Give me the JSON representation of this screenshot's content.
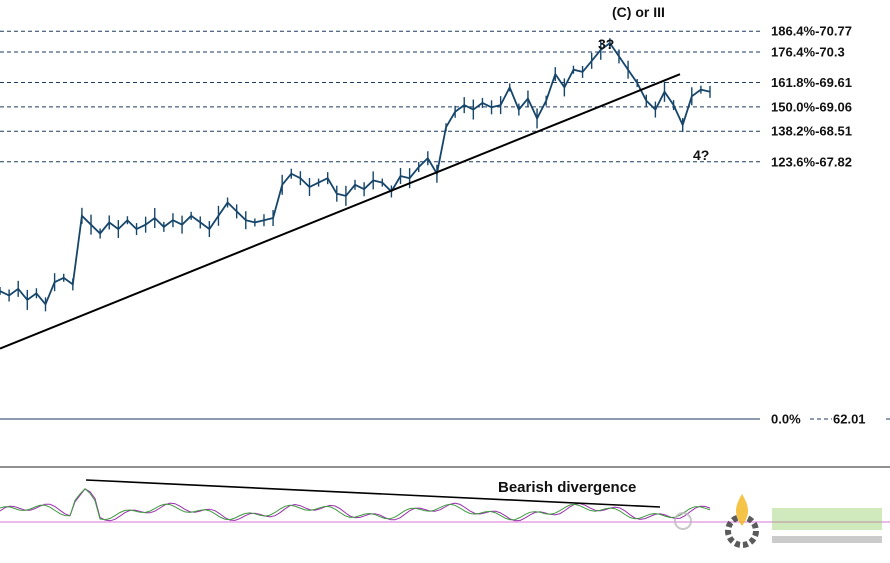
{
  "chart_data": {
    "type": "line",
    "title": "",
    "xlabel": "",
    "ylabel": "",
    "ylim": [
      61.6,
      71.4
    ],
    "grid": false,
    "legend": "none",
    "fibonacci_levels": [
      {
        "label": "186.4%-70.77",
        "ratio": "186.4%",
        "price": 70.77
      },
      {
        "label": "176.4%-70.3",
        "ratio": "176.4%",
        "price": 70.3
      },
      {
        "label": "161.8%-69.61",
        "ratio": "161.8%",
        "price": 69.61
      },
      {
        "label": "150.0%-69.06",
        "ratio": "150.0%",
        "price": 69.06
      },
      {
        "label": "138.2%-68.51",
        "ratio": "138.2%",
        "price": 68.51
      },
      {
        "label": "123.6%-67.82",
        "ratio": "123.6%",
        "price": 67.82
      }
    ],
    "base_level": {
      "ratio": "0.0%",
      "price_label": "62.01",
      "price": 62.01
    },
    "wave_labels": [
      {
        "text": "(C) or III"
      },
      {
        "text": "3?"
      },
      {
        "text": "4?"
      }
    ],
    "series": [
      {
        "values": [
          64.9,
          64.8,
          64.95,
          64.7,
          64.85,
          64.6,
          65.1,
          65.2,
          65.05,
          66.6,
          66.4,
          66.2,
          66.45,
          66.3,
          66.5,
          66.3,
          66.4,
          66.55,
          66.35,
          66.5,
          66.4,
          66.6,
          66.45,
          66.3,
          66.6,
          66.9,
          66.7,
          66.5,
          66.45,
          66.5,
          66.55,
          67.3,
          67.55,
          67.45,
          67.25,
          67.35,
          67.45,
          67.1,
          67.05,
          67.3,
          67.2,
          67.4,
          67.35,
          67.15,
          67.5,
          67.45,
          67.7,
          67.9,
          67.55,
          68.6,
          68.95,
          69.1,
          69.0,
          69.15,
          69.05,
          69.1,
          69.5,
          69.0,
          69.25,
          68.8,
          69.2,
          69.8,
          69.5,
          69.9,
          69.85,
          70.1,
          70.35,
          70.5,
          70.2,
          69.9,
          69.6,
          69.2,
          69.0,
          69.4,
          69.1,
          68.65,
          69.3,
          69.45,
          69.4
        ]
      }
    ],
    "trendline": {
      "values": [
        63.6,
        69.8
      ]
    },
    "oscillator": {
      "annotation": "Bearish divergence",
      "color_fast": "#9a2fae",
      "color_slow": "#3f9a3f",
      "baseline_color": "#d877d8"
    },
    "colors": {
      "price": "#17466b",
      "level_line": "#1e3a5f",
      "trendline": "#000000"
    }
  }
}
